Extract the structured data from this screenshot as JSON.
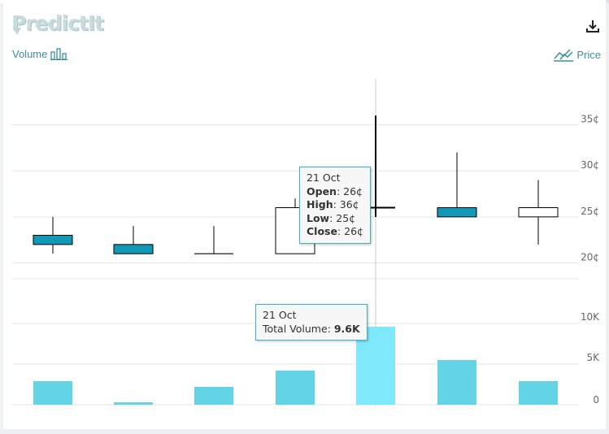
{
  "brand": {
    "logo_text": "PredictIt"
  },
  "toolbar": {
    "volume_label": "Volume",
    "price_label": "Price",
    "volume_icon": "bar-chart-icon",
    "price_icon": "line-chart-icon",
    "download_icon": "download-icon"
  },
  "colors": {
    "candle_down": "#1199b7",
    "candle_up": "#ffffff",
    "volume_bar": "#62d4e6",
    "volume_bar_hover": "#7fe9fb",
    "accent": "#3c8fa0"
  },
  "chart_data": [
    {
      "type": "candlestick",
      "title": "",
      "yunit": "¢",
      "ylim": [
        19,
        37
      ],
      "yticks": [
        "20¢",
        "25¢",
        "30¢",
        "35¢"
      ],
      "ytick_values": [
        20,
        25,
        30,
        35
      ],
      "grid": true,
      "candles": [
        {
          "open": 23,
          "high": 25,
          "low": 21,
          "close": 22
        },
        {
          "open": 22,
          "high": 24,
          "low": 21,
          "close": 21
        },
        {
          "open": 21,
          "high": 24,
          "low": 21,
          "close": 21
        },
        {
          "open": 21,
          "high": 27,
          "low": 21,
          "close": 26
        },
        {
          "open": 26,
          "high": 36,
          "low": 25,
          "close": 26
        },
        {
          "open": 26,
          "high": 32,
          "low": 25,
          "close": 25
        },
        {
          "open": 25,
          "high": 29,
          "low": 22,
          "close": 26
        }
      ],
      "highlighted_index": 4
    },
    {
      "type": "bar",
      "title": "",
      "ylim": [
        0,
        12000
      ],
      "yticks": [
        "0",
        "5K",
        "10K"
      ],
      "ytick_values": [
        0,
        5000,
        10000
      ],
      "grid": true,
      "values": [
        2900,
        300,
        2200,
        4200,
        9600,
        5500,
        2900
      ],
      "highlighted_index": 4
    }
  ],
  "tooltips": {
    "price": {
      "date": "21 Oct",
      "open_label": "Open",
      "open_value": "26¢",
      "high_label": "High",
      "high_value": "36¢",
      "low_label": "Low",
      "low_value": "25¢",
      "close_label": "Close",
      "close_value": "26¢"
    },
    "volume": {
      "date": "21 Oct",
      "total_label": "Total Volume",
      "total_value": "9.6K"
    }
  }
}
